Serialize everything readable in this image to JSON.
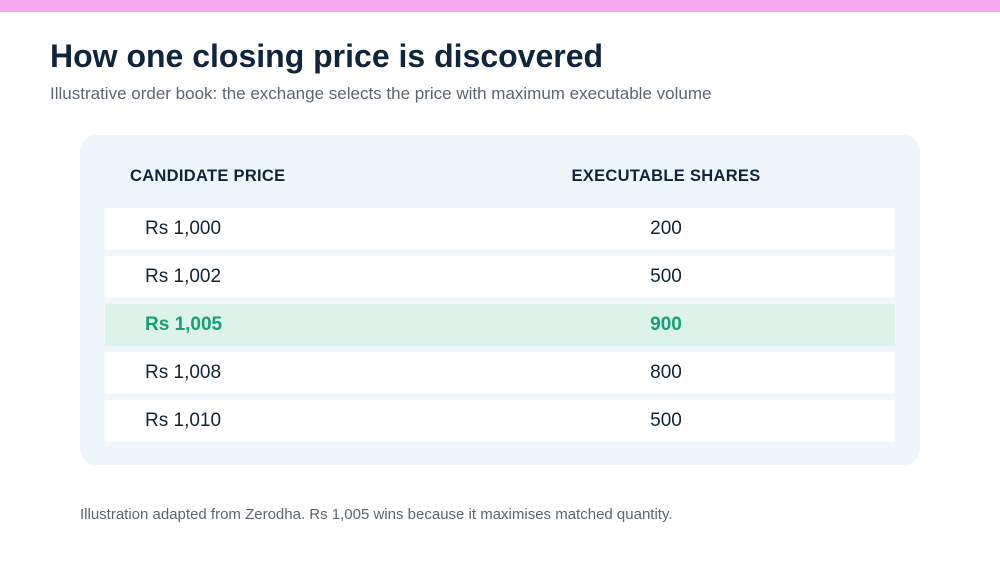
{
  "title": "How one closing price is discovered",
  "subtitle": "Illustrative order book: the exchange selects the price with maximum executable volume",
  "table": {
    "headers": [
      "CANDIDATE PRICE",
      "EXECUTABLE SHARES"
    ],
    "rows": [
      {
        "price": "Rs 1,000",
        "shares": "200",
        "highlight": false
      },
      {
        "price": "Rs 1,002",
        "shares": "500",
        "highlight": false
      },
      {
        "price": "Rs 1,005",
        "shares": "900",
        "highlight": true
      },
      {
        "price": "Rs 1,008",
        "shares": "800",
        "highlight": false
      },
      {
        "price": "Rs 1,010",
        "shares": "500",
        "highlight": false
      }
    ]
  },
  "footnote": "Illustration adapted from Zerodha. Rs 1,005 wins because it maximises matched quantity.",
  "colors": {
    "accent_bar": "#f7a8f0",
    "card_bg": "#eff6fb",
    "row_bg": "#ffffff",
    "highlight_bg": "#dcf3ea",
    "highlight_text": "#17a077",
    "text": "#10243a",
    "muted": "#5b6573"
  }
}
